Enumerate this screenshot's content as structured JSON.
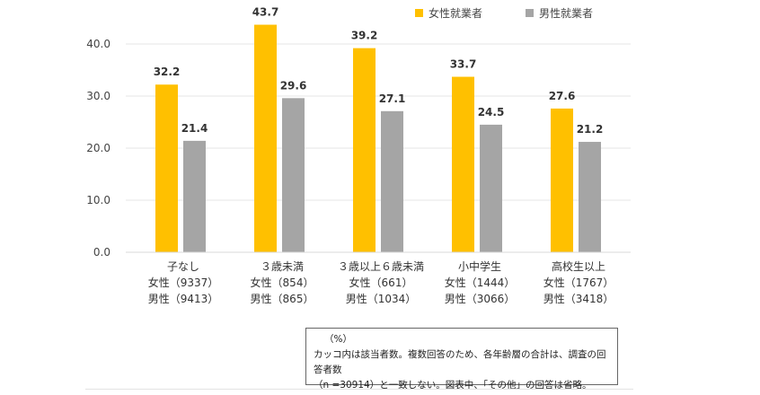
{
  "chart_data": {
    "type": "bar",
    "categories": [
      "子なし",
      "３歳未満",
      "３歳以上６歳未満",
      "小中学生",
      "高校生以上"
    ],
    "category_counts": [
      {
        "female": "女性（9337）",
        "male": "男性（9413）"
      },
      {
        "female": "女性（854）",
        "male": "男性（865）"
      },
      {
        "female": "女性（661）",
        "male": "男性（1034）"
      },
      {
        "female": "女性（1444）",
        "male": "男性（3066）"
      },
      {
        "female": "女性（1767）",
        "male": "男性（3418）"
      }
    ],
    "series": [
      {
        "name": "女性就業者",
        "color": "#FFC000",
        "values": [
          32.2,
          43.7,
          39.2,
          33.7,
          27.6
        ]
      },
      {
        "name": "男性就業者",
        "color": "#A5A5A5",
        "values": [
          21.4,
          29.6,
          27.1,
          24.5,
          21.2
        ]
      }
    ],
    "yticks": [
      "0.0",
      "10.0",
      "20.0",
      "30.0",
      "40.0"
    ],
    "ylim": [
      0,
      48
    ],
    "grid": true,
    "legend_position": "top-right",
    "unit_label": "（%）",
    "notes": [
      "カッコ内は該当者数。複数回答のため、各年齢層の合計は、調査の回答者数",
      "（n =30914）と一致しない。図表中、「その他」の回答は省略。"
    ]
  }
}
